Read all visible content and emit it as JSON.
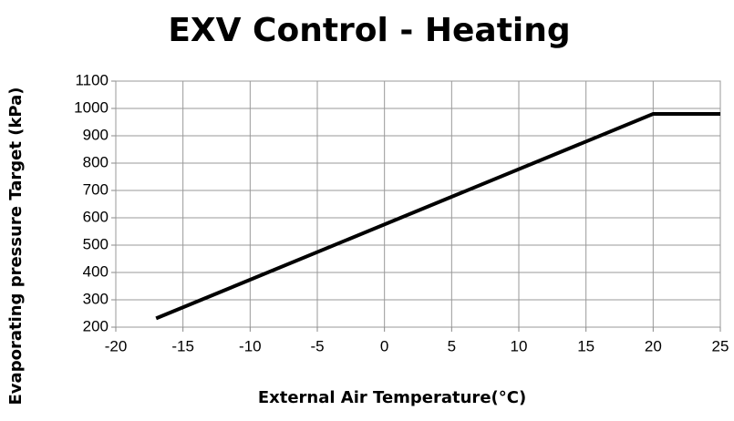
{
  "chart_data": {
    "type": "line",
    "title": "EXV Control - Heating",
    "x_label": "External Air Temperature(°C)",
    "y_label": "Evaporating pressure Target (kPa)",
    "series": [
      {
        "name": "Evaporating pressure Target",
        "color": "#000000",
        "x": [
          -17,
          20,
          25
        ],
        "values": [
          232,
          980,
          980
        ]
      }
    ],
    "xlim": [
      -20,
      25
    ],
    "xticks": [
      -20,
      -15,
      -10,
      -5,
      0,
      5,
      10,
      15,
      20,
      25
    ],
    "ylim": [
      200,
      1100
    ],
    "yticks": [
      200,
      300,
      400,
      500,
      600,
      700,
      800,
      900,
      1000,
      1100
    ],
    "grid": true
  }
}
